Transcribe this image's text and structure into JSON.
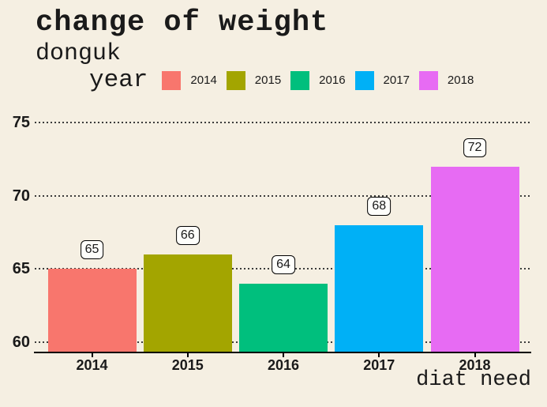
{
  "header": {
    "title": "change of weight",
    "subtitle": "donguk"
  },
  "legend": {
    "title": "year",
    "entries": [
      {
        "label": "2014",
        "color": "#F8766D"
      },
      {
        "label": "2015",
        "color": "#A3A500"
      },
      {
        "label": "2016",
        "color": "#00BF7D"
      },
      {
        "label": "2017",
        "color": "#00B0F6"
      },
      {
        "label": "2018",
        "color": "#E76BF3"
      }
    ]
  },
  "chart_data": {
    "type": "bar",
    "title": "change of weight",
    "subtitle": "donguk",
    "legend_title": "year",
    "legend_position": "top",
    "categories": [
      "2014",
      "2015",
      "2016",
      "2017",
      "2018"
    ],
    "values": [
      65,
      66,
      64,
      68,
      72
    ],
    "bar_colors": [
      "#F8766D",
      "#A3A500",
      "#00BF7D",
      "#00B0F6",
      "#E76BF3"
    ],
    "value_labels": [
      "65",
      "66",
      "64",
      "68",
      "72"
    ],
    "xlabel": "diat need",
    "ylabel": "",
    "yticks": [
      60,
      65,
      70,
      75
    ],
    "ylim": [
      59.3,
      76.5
    ],
    "grid": "horizontal-dotted"
  },
  "colors": {
    "background": "#F5EFE2",
    "grid": "#3B3B3B",
    "axis": "#000000",
    "text": "#1A1A1A",
    "value_box_bg": "#FEFEFB",
    "value_box_border": "#000000"
  }
}
